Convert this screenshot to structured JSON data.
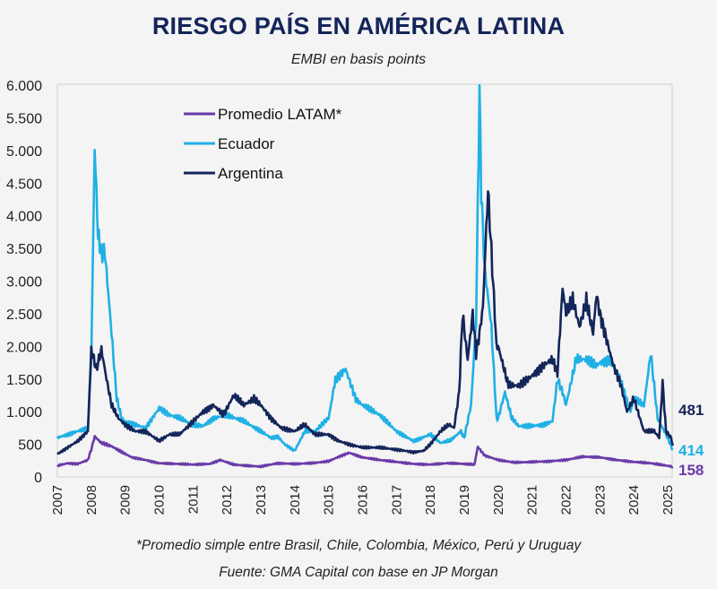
{
  "header": {
    "title": "RIESGO PAÍS EN AMÉRICA LATINA",
    "subtitle": "EMBI en basis points"
  },
  "footer": {
    "note": "*Promedio simple entre Brasil, Chile, Colombia, México, Perú y Uruguay",
    "source": "Fuente: GMA Capital con base en JP Morgan"
  },
  "chart_data": {
    "type": "line",
    "title": "RIESGO PAÍS EN AMÉRICA LATINA",
    "subtitle": "EMBI en basis points",
    "xlabel": "",
    "ylabel": "",
    "xlim": [
      2007,
      2025.2
    ],
    "ylim": [
      0,
      6000
    ],
    "y_ticks": [
      0,
      500,
      1000,
      1500,
      2000,
      2500,
      3000,
      3500,
      4000,
      4500,
      5000,
      5500,
      6000
    ],
    "y_tick_labels": [
      "0",
      "500",
      "1.000",
      "1.500",
      "2.000",
      "2.500",
      "3.000",
      "3.500",
      "4.000",
      "4.500",
      "5.000",
      "5.500",
      "6.000"
    ],
    "x_tick_labels": [
      "2007",
      "2008",
      "2009",
      "2010",
      "2011",
      "2012",
      "2013",
      "2014",
      "2015",
      "2016",
      "2017",
      "2018",
      "2019",
      "2020",
      "2021",
      "2022",
      "2023",
      "2024",
      "2025"
    ],
    "grid": false,
    "legend": {
      "position": "top-left-inside",
      "entries": [
        "Promedio LATAM*",
        "Ecuador",
        "Argentina"
      ]
    },
    "end_labels": [
      {
        "series": "Argentina",
        "value": 481
      },
      {
        "series": "Ecuador",
        "value": 414
      },
      {
        "series": "Promedio LATAM*",
        "value": 158
      }
    ],
    "series": [
      {
        "name": "Promedio LATAM*",
        "color": "#6a3aa8",
        "x": [
          2007.0,
          2007.3,
          2007.6,
          2007.9,
          2008.0,
          2008.1,
          2008.3,
          2008.6,
          2008.9,
          2009.2,
          2009.6,
          2010.0,
          2010.5,
          2011.0,
          2011.5,
          2011.8,
          2012.2,
          2012.6,
          2013.0,
          2013.5,
          2014.0,
          2014.5,
          2015.0,
          2015.3,
          2015.6,
          2016.0,
          2016.5,
          2017.0,
          2017.5,
          2018.0,
          2018.5,
          2019.0,
          2019.3,
          2019.4,
          2019.6,
          2020.0,
          2020.5,
          2021.0,
          2021.5,
          2022.0,
          2022.5,
          2023.0,
          2023.5,
          2024.0,
          2024.5,
          2025.0,
          2025.15
        ],
        "values": [
          170,
          210,
          200,
          260,
          420,
          620,
          520,
          470,
          380,
          300,
          260,
          210,
          200,
          190,
          200,
          260,
          190,
          170,
          160,
          210,
          200,
          210,
          240,
          310,
          370,
          300,
          260,
          230,
          200,
          190,
          210,
          200,
          190,
          460,
          330,
          260,
          220,
          230,
          240,
          260,
          310,
          300,
          260,
          230,
          210,
          170,
          158
        ]
      },
      {
        "name": "Ecuador",
        "color": "#1fb0e6",
        "x": [
          2007.0,
          2007.3,
          2007.6,
          2007.9,
          2008.0,
          2008.1,
          2008.2,
          2008.3,
          2008.4,
          2008.6,
          2008.75,
          2008.9,
          2009.0,
          2009.3,
          2009.6,
          2010.0,
          2010.3,
          2010.6,
          2011.0,
          2011.3,
          2011.6,
          2012.0,
          2012.5,
          2013.0,
          2013.3,
          2013.5,
          2013.7,
          2014.0,
          2014.3,
          2014.6,
          2015.0,
          2015.2,
          2015.5,
          2015.8,
          2016.0,
          2016.5,
          2017.0,
          2017.5,
          2018.0,
          2018.3,
          2018.6,
          2018.9,
          2019.0,
          2019.2,
          2019.35,
          2019.45,
          2019.5,
          2019.6,
          2019.8,
          2019.95,
          2020.0,
          2020.2,
          2020.4,
          2020.6,
          2021.0,
          2021.3,
          2021.6,
          2021.75,
          2021.9,
          2022.0,
          2022.3,
          2022.6,
          2022.9,
          2023.0,
          2023.3,
          2023.6,
          2023.9,
          2024.0,
          2024.3,
          2024.5,
          2024.7,
          2024.9,
          2025.0,
          2025.15
        ],
        "values": [
          600,
          650,
          700,
          750,
          1800,
          5050,
          3700,
          3400,
          3450,
          2200,
          1200,
          900,
          850,
          800,
          750,
          1050,
          950,
          900,
          800,
          780,
          900,
          950,
          850,
          700,
          600,
          620,
          500,
          400,
          700,
          700,
          900,
          1500,
          1650,
          1200,
          1100,
          950,
          700,
          550,
          650,
          520,
          560,
          700,
          600,
          1100,
          2400,
          6000,
          4400,
          3200,
          2300,
          900,
          900,
          1300,
          900,
          780,
          780,
          800,
          850,
          1500,
          1300,
          1100,
          1800,
          1800,
          1700,
          1750,
          1800,
          1500,
          1000,
          1200,
          1100,
          1900,
          900,
          700,
          600,
          414
        ]
      },
      {
        "name": "Argentina",
        "color": "#14255a",
        "x": [
          2007.0,
          2007.3,
          2007.6,
          2007.9,
          2008.0,
          2008.15,
          2008.3,
          2008.45,
          2008.6,
          2008.8,
          2009.0,
          2009.3,
          2009.6,
          2010.0,
          2010.3,
          2010.6,
          2011.0,
          2011.3,
          2011.6,
          2011.9,
          2012.2,
          2012.5,
          2012.8,
          2013.0,
          2013.3,
          2013.6,
          2014.0,
          2014.3,
          2014.6,
          2015.0,
          2015.3,
          2015.6,
          2016.0,
          2016.5,
          2017.0,
          2017.5,
          2017.8,
          2018.0,
          2018.3,
          2018.55,
          2018.7,
          2018.85,
          2018.95,
          2019.1,
          2019.25,
          2019.35,
          2019.45,
          2019.55,
          2019.7,
          2019.9,
          2019.95,
          2020.0,
          2020.3,
          2020.6,
          2020.9,
          2021.0,
          2021.3,
          2021.6,
          2021.75,
          2021.9,
          2022.0,
          2022.2,
          2022.4,
          2022.6,
          2022.8,
          2022.9,
          2023.0,
          2023.2,
          2023.4,
          2023.6,
          2023.8,
          2024.0,
          2024.3,
          2024.6,
          2024.75,
          2024.85,
          2024.95,
          2025.1,
          2025.15
        ],
        "values": [
          350,
          450,
          550,
          700,
          1950,
          1650,
          1950,
          1500,
          1100,
          900,
          800,
          700,
          700,
          550,
          650,
          650,
          850,
          1000,
          1100,
          950,
          1250,
          1100,
          1200,
          1100,
          900,
          750,
          700,
          800,
          650,
          650,
          550,
          500,
          450,
          450,
          420,
          380,
          400,
          500,
          700,
          800,
          750,
          1300,
          2500,
          1800,
          2500,
          1900,
          2200,
          2600,
          4400,
          2500,
          2000,
          2000,
          1400,
          1400,
          1500,
          1550,
          1700,
          1800,
          1600,
          2900,
          2500,
          2700,
          2300,
          2700,
          2200,
          2800,
          2500,
          2100,
          1700,
          1450,
          1000,
          1200,
          700,
          700,
          600,
          1450,
          700,
          600,
          481
        ]
      }
    ]
  }
}
